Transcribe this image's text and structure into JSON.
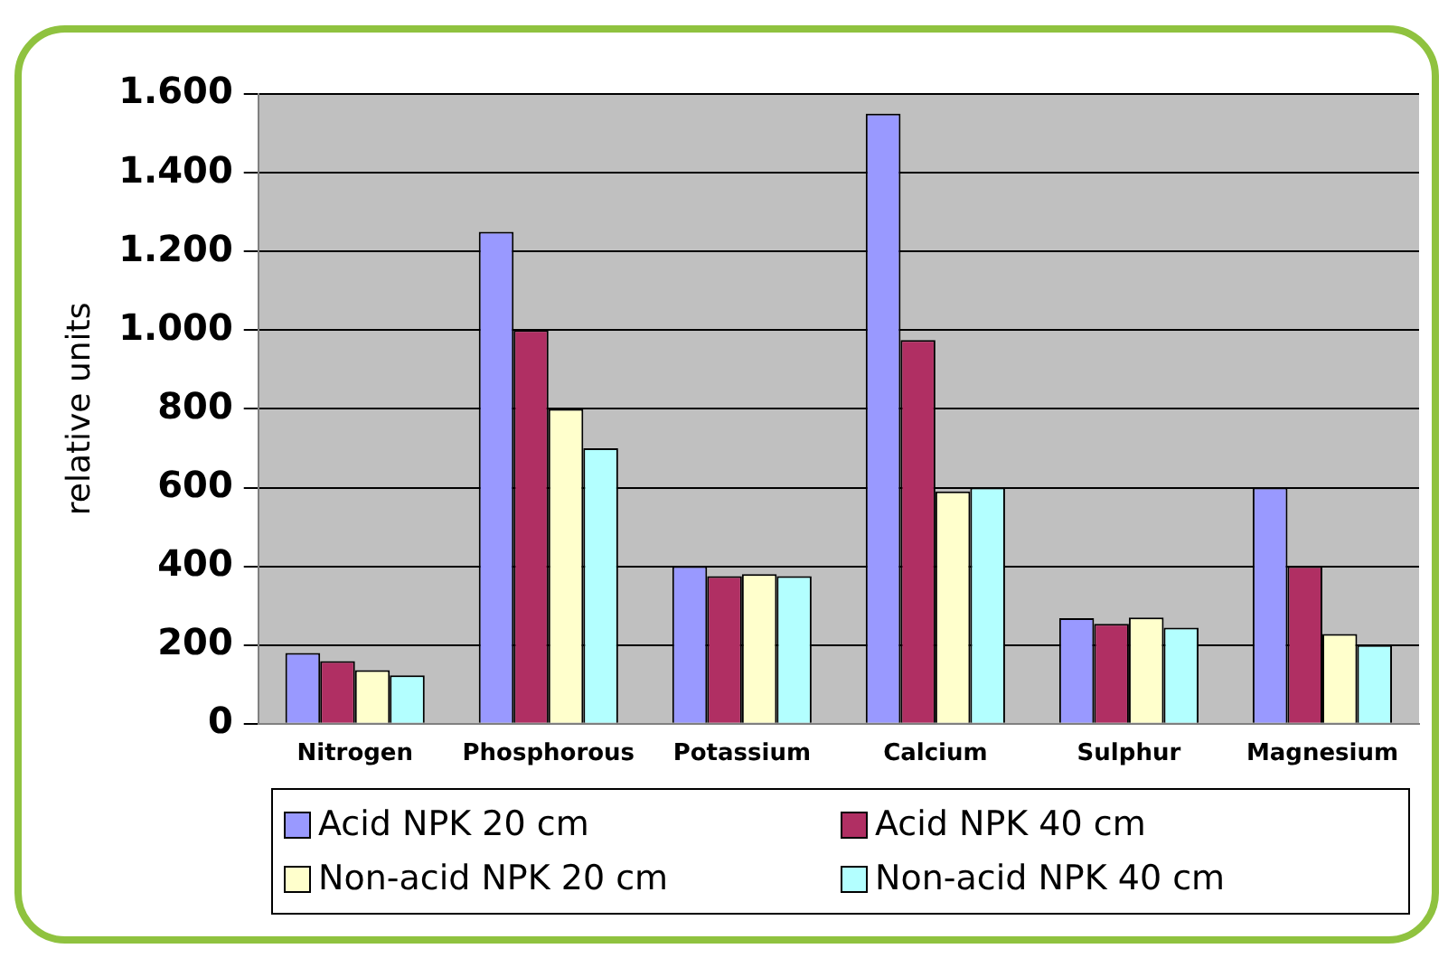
{
  "chart_data": {
    "type": "bar",
    "ylabel": "relative units",
    "categories": [
      "Nitrogen",
      "Phosphorous",
      "Potassium",
      "Calcium",
      "Sulphur",
      "Magnesium"
    ],
    "series": [
      {
        "name": "Acid NPK 20 cm",
        "color": "#9999ff",
        "values": [
          180,
          1250,
          400,
          1550,
          268,
          600
        ]
      },
      {
        "name": "Acid NPK 40 cm",
        "color": "#b02f63",
        "values": [
          159,
          1000,
          375,
          975,
          254,
          400
        ]
      },
      {
        "name": "Non-acid NPK 20 cm",
        "color": "#ffffcc",
        "values": [
          136,
          800,
          380,
          590,
          270,
          228
        ]
      },
      {
        "name": "Non-acid NPK 40 cm",
        "color": "#b3ffff",
        "values": [
          123,
          700,
          375,
          600,
          244,
          200
        ]
      }
    ],
    "ylim": [
      0,
      1600
    ],
    "yticks": [
      0,
      200,
      400,
      600,
      800,
      {
        "value": 1000,
        "label": "1.000"
      },
      {
        "value": 1200,
        "label": "1.200"
      },
      {
        "value": 1400,
        "label": "1.400"
      },
      {
        "value": 1600,
        "label": "1.600"
      }
    ],
    "grid": "y",
    "legend": "bottom"
  }
}
